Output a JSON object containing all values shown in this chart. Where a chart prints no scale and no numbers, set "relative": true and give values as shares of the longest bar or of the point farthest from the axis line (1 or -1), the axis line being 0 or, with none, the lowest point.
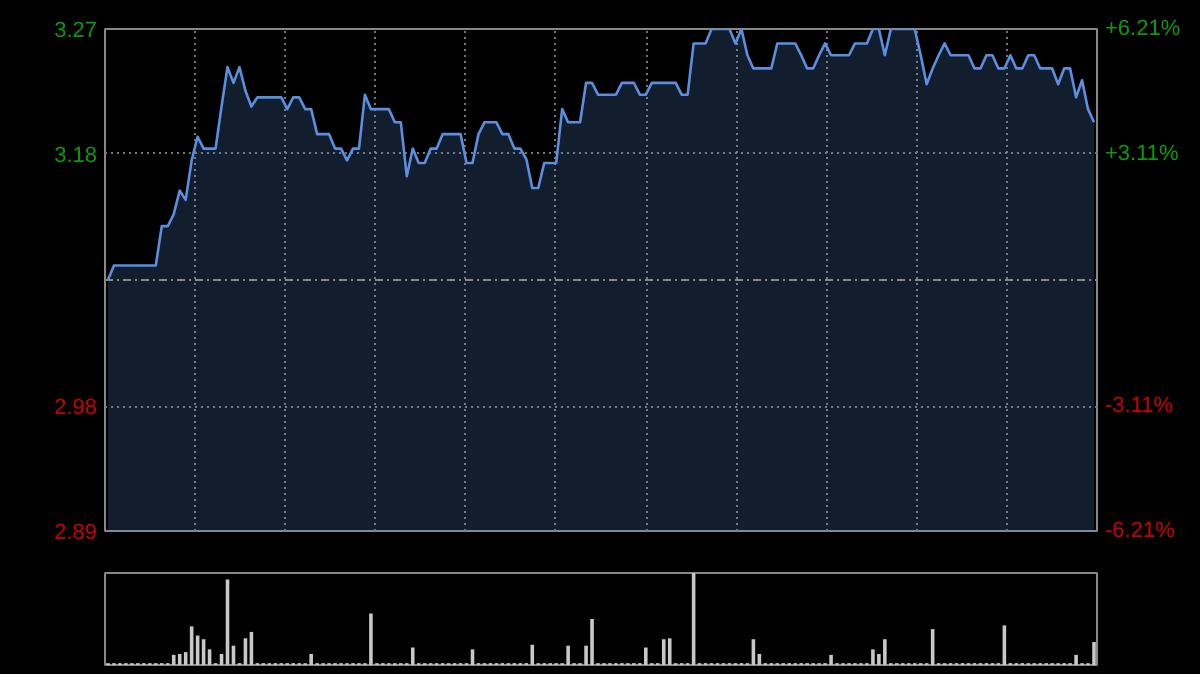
{
  "chart_data": [
    {
      "type": "area",
      "categories": [
        null,
        null,
        null,
        null,
        null,
        null,
        null,
        null,
        null,
        null,
        null,
        null,
        null,
        null,
        null,
        null,
        null,
        null,
        null,
        null,
        null,
        null,
        null,
        null,
        null,
        null,
        null,
        null,
        null,
        null,
        null,
        null,
        null,
        null,
        null,
        null,
        null,
        null,
        null,
        null,
        null,
        null,
        null,
        null,
        null,
        null,
        null,
        null,
        null,
        null,
        null,
        null,
        null,
        null,
        null,
        null,
        null,
        null,
        null,
        null,
        null,
        null,
        null,
        null,
        null,
        null,
        null,
        null,
        null,
        null,
        null,
        null,
        null,
        null,
        null,
        null,
        null,
        null,
        null,
        null,
        null,
        null,
        null,
        null,
        null,
        null,
        null,
        null,
        null,
        null,
        null,
        null,
        null,
        null,
        null,
        null,
        null,
        null,
        null,
        null,
        null,
        null,
        null,
        null,
        null,
        null,
        null,
        null,
        null,
        null,
        null,
        null,
        null,
        null,
        null,
        null,
        null,
        null,
        null,
        null,
        null,
        null,
        null,
        null,
        null,
        null,
        null,
        null,
        null,
        null,
        null,
        null,
        null,
        null,
        null,
        null,
        null,
        null,
        null,
        null,
        null,
        null,
        null,
        null,
        null,
        null,
        null,
        null,
        null,
        null,
        null,
        null,
        null,
        null,
        null,
        null,
        null,
        null,
        null,
        null,
        null,
        null,
        null,
        null,
        null,
        null
      ],
      "ylim": [
        2.889,
        3.271
      ],
      "yticks": [
        {
          "value": 3.271,
          "label": "3.27"
        },
        {
          "value": 3.176,
          "label": "3.18"
        },
        {
          "value": 2.984,
          "label": "2.98"
        },
        {
          "value": 2.889,
          "label": "2.89"
        }
      ],
      "y2lim": [
        -6.21,
        6.21
      ],
      "y2ticks": [
        {
          "value": 6.21,
          "label": "+6.21%"
        },
        {
          "value": 3.11,
          "label": "+3.11%"
        },
        {
          "value": -3.11,
          "label": "-3.11%"
        },
        {
          "value": -6.21,
          "label": "-6.21%"
        }
      ],
      "tick_labels": "y",
      "grid": true,
      "ref_lines": [
        {
          "axis": "y",
          "value": 3.08,
          "line_style": "dashed",
          "color": "#888888"
        }
      ],
      "series": [
        {
          "color": "#5a8fe0",
          "values": [
            3.08,
            3.091,
            3.091,
            3.091,
            3.091,
            3.091,
            3.091,
            3.091,
            3.091,
            3.121,
            3.121,
            3.13,
            3.148,
            3.141,
            3.171,
            3.189,
            3.18,
            3.18,
            3.18,
            3.212,
            3.242,
            3.23,
            3.242,
            3.224,
            3.212,
            3.219,
            3.219,
            3.219,
            3.219,
            3.219,
            3.21,
            3.219,
            3.219,
            3.21,
            3.21,
            3.191,
            3.191,
            3.191,
            3.18,
            3.18,
            3.171,
            3.18,
            3.18,
            3.221,
            3.21,
            3.21,
            3.21,
            3.21,
            3.2,
            3.2,
            3.159,
            3.18,
            3.169,
            3.169,
            3.18,
            3.18,
            3.191,
            3.191,
            3.191,
            3.191,
            3.169,
            3.169,
            3.191,
            3.2,
            3.2,
            3.2,
            3.191,
            3.191,
            3.18,
            3.18,
            3.172,
            3.15,
            3.15,
            3.169,
            3.169,
            3.169,
            3.21,
            3.2,
            3.2,
            3.2,
            3.23,
            3.23,
            3.221,
            3.221,
            3.221,
            3.221,
            3.23,
            3.23,
            3.23,
            3.221,
            3.221,
            3.23,
            3.23,
            3.23,
            3.23,
            3.23,
            3.221,
            3.221,
            3.26,
            3.26,
            3.26,
            3.271,
            3.271,
            3.271,
            3.271,
            3.26,
            3.271,
            3.251,
            3.241,
            3.241,
            3.241,
            3.241,
            3.26,
            3.26,
            3.26,
            3.26,
            3.251,
            3.241,
            3.241,
            3.251,
            3.26,
            3.251,
            3.251,
            3.251,
            3.251,
            3.26,
            3.26,
            3.26,
            3.271,
            3.271,
            3.251,
            3.271,
            3.271,
            3.271,
            3.271,
            3.271,
            3.251,
            3.229,
            3.241,
            3.251,
            3.26,
            3.251,
            3.251,
            3.251,
            3.251,
            3.241,
            3.241,
            3.251,
            3.251,
            3.241,
            3.241,
            3.251,
            3.241,
            3.241,
            3.251,
            3.251,
            3.241,
            3.241,
            3.241,
            3.229,
            3.241,
            3.241,
            3.219,
            3.232,
            3.21,
            3.2
          ]
        }
      ]
    },
    {
      "type": "bar",
      "relative": true,
      "color": "#c8c8c8",
      "categories": [
        null,
        null,
        null,
        null,
        null,
        null,
        null,
        null,
        null,
        null,
        null,
        null,
        null,
        null,
        null,
        null,
        null,
        null,
        null,
        null,
        null,
        null,
        null,
        null,
        null,
        null,
        null,
        null,
        null,
        null,
        null,
        null,
        null,
        null,
        null,
        null,
        null,
        null,
        null,
        null,
        null,
        null,
        null,
        null,
        null,
        null,
        null,
        null,
        null,
        null,
        null,
        null,
        null,
        null,
        null,
        null,
        null,
        null,
        null,
        null,
        null,
        null,
        null,
        null,
        null,
        null,
        null,
        null,
        null,
        null,
        null,
        null,
        null,
        null,
        null,
        null,
        null,
        null,
        null,
        null,
        null,
        null,
        null,
        null,
        null,
        null,
        null,
        null,
        null,
        null,
        null,
        null,
        null,
        null,
        null,
        null,
        null,
        null,
        null,
        null,
        null,
        null,
        null,
        null,
        null,
        null,
        null,
        null,
        null,
        null,
        null,
        null,
        null,
        null,
        null,
        null,
        null,
        null,
        null,
        null,
        null,
        null,
        null,
        null,
        null,
        null,
        null,
        null,
        null,
        null,
        null,
        null,
        null,
        null,
        null,
        null,
        null,
        null,
        null,
        null,
        null,
        null,
        null,
        null,
        null,
        null,
        null,
        null,
        null,
        null,
        null,
        null,
        null,
        null,
        null,
        null,
        null,
        null,
        null,
        null,
        null,
        null,
        null,
        null,
        null,
        null
      ],
      "values": [
        0.02,
        0.02,
        0.02,
        0.02,
        0.02,
        0.02,
        0.02,
        0.02,
        0.02,
        0.02,
        0.02,
        0.11,
        0.12,
        0.14,
        0.42,
        0.32,
        0.28,
        0.17,
        0.02,
        0.12,
        0.93,
        0.21,
        0.02,
        0.29,
        0.36,
        0.02,
        0.02,
        0.02,
        0.02,
        0.02,
        0.02,
        0.02,
        0.02,
        0.02,
        0.12,
        0.02,
        0.02,
        0.02,
        0.02,
        0.02,
        0.02,
        0.02,
        0.02,
        0.02,
        0.56,
        0.02,
        0.02,
        0.02,
        0.02,
        0.02,
        0.02,
        0.19,
        0.02,
        0.02,
        0.02,
        0.02,
        0.02,
        0.02,
        0.02,
        0.02,
        0.02,
        0.17,
        0.02,
        0.02,
        0.02,
        0.02,
        0.02,
        0.02,
        0.02,
        0.02,
        0.02,
        0.22,
        0.02,
        0.02,
        0.02,
        0.02,
        0.02,
        0.21,
        0.02,
        0.02,
        0.21,
        0.5,
        0.02,
        0.02,
        0.02,
        0.02,
        0.02,
        0.02,
        0.02,
        0.02,
        0.19,
        0.02,
        0.02,
        0.28,
        0.29,
        0.02,
        0.02,
        0.02,
        1.0,
        0.02,
        0.02,
        0.02,
        0.02,
        0.02,
        0.02,
        0.02,
        0.02,
        0.02,
        0.28,
        0.12,
        0.02,
        0.02,
        0.02,
        0.02,
        0.02,
        0.02,
        0.02,
        0.02,
        0.02,
        0.02,
        0.02,
        0.11,
        0.02,
        0.02,
        0.02,
        0.02,
        0.02,
        0.02,
        0.17,
        0.12,
        0.28,
        0.02,
        0.02,
        0.02,
        0.02,
        0.02,
        0.02,
        0.02,
        0.39,
        0.02,
        0.02,
        0.02,
        0.02,
        0.02,
        0.02,
        0.02,
        0.02,
        0.02,
        0.02,
        0.02,
        0.43,
        0.02,
        0.02,
        0.02,
        0.02,
        0.02,
        0.02,
        0.02,
        0.02,
        0.02,
        0.02,
        0.02,
        0.11,
        0.02,
        0.02,
        0.25
      ],
      "tick_labels": false
    }
  ]
}
